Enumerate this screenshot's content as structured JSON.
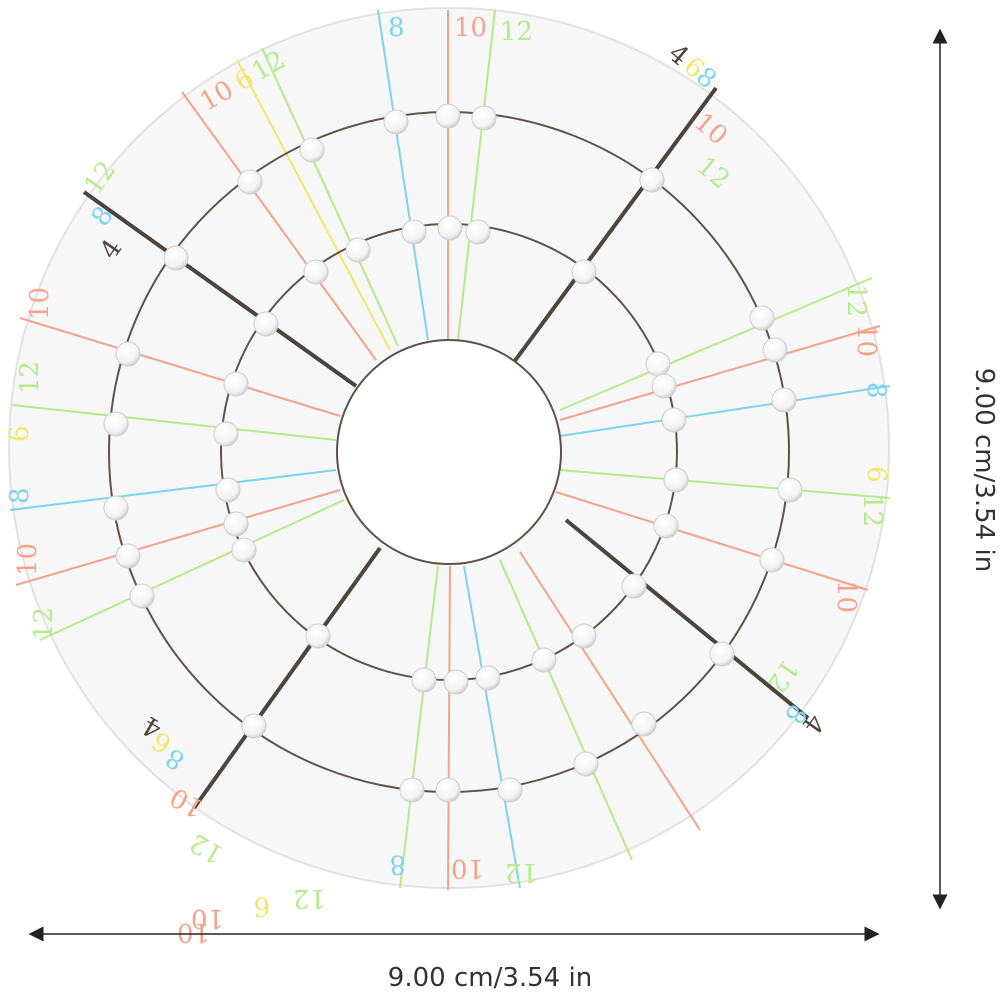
{
  "product": {
    "name": "bracelet-sizing-template",
    "colors": {
      "disc": "#f7f7f7",
      "disc_edge": "#e2e2e2",
      "ring": "#5e5348",
      "divider": "#4d443c",
      "dimension": "#222222",
      "peg": "#ffffff",
      "line_4": "#4d443c",
      "line_6": "#f4e66a",
      "line_8": "#7ed3f2",
      "line_10": "#f4a38a",
      "line_12": "#b4ec8c"
    }
  },
  "dimensions": {
    "width_label": "9.00 cm/3.54 in",
    "height_label": "9.00 cm/3.54 in"
  },
  "sector_labels": [
    {
      "name": "top",
      "items": [
        "8",
        "10",
        "12"
      ]
    },
    {
      "name": "upper-left",
      "items": [
        "10",
        "6",
        "12"
      ]
    },
    {
      "name": "upper-right",
      "items": [
        "4",
        "6",
        "8",
        "10",
        "12"
      ]
    },
    {
      "name": "left",
      "items": [
        "4",
        "8",
        "12"
      ]
    },
    {
      "name": "left-mid",
      "items": [
        "10",
        "12",
        "6",
        "8",
        "10",
        "12"
      ]
    },
    {
      "name": "right-mid",
      "items": [
        "12",
        "10",
        "8",
        "6",
        "12",
        "10"
      ]
    },
    {
      "name": "lower-right",
      "items": [
        "4",
        "8",
        "12"
      ]
    },
    {
      "name": "lower-left",
      "items": [
        "12",
        "10",
        "4",
        "6",
        "8"
      ]
    },
    {
      "name": "bottom",
      "items": [
        "10",
        "12",
        "10",
        "8",
        "12",
        "6",
        "10"
      ]
    }
  ]
}
